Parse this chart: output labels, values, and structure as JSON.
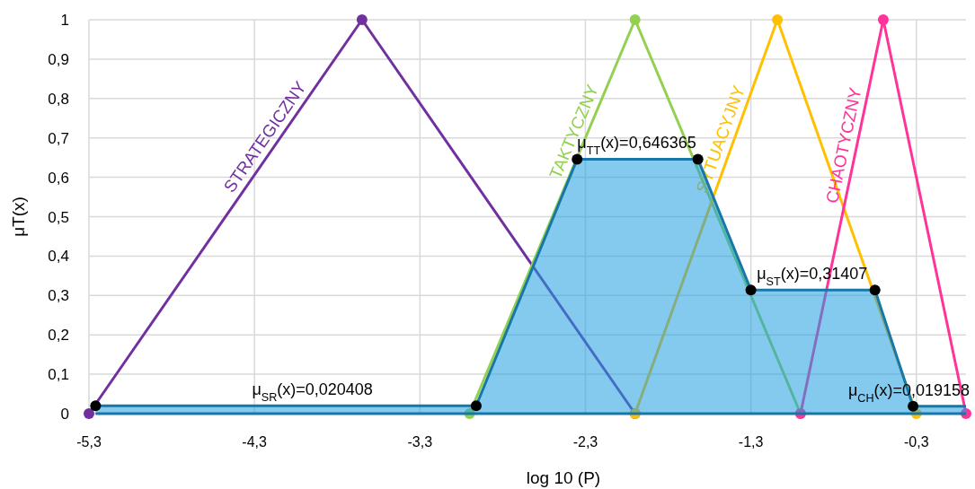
{
  "chart_data": {
    "type": "line",
    "xlabel": "log 10 (P)",
    "ylabel": "μT(x)",
    "xlim": [
      -5.3,
      0
    ],
    "ylim": [
      0,
      1
    ],
    "xticks": [
      {
        "value": -5.3,
        "label": "-5,3"
      },
      {
        "value": -4.3,
        "label": "-4,3"
      },
      {
        "value": -3.3,
        "label": "-3,3"
      },
      {
        "value": -2.3,
        "label": "-2,3"
      },
      {
        "value": -1.3,
        "label": "-1,3"
      },
      {
        "value": -0.3,
        "label": "-0,3"
      }
    ],
    "yticks": [
      0,
      {
        "value": 0.1,
        "label": "0,1"
      },
      {
        "value": 0.2,
        "label": "0,2"
      },
      {
        "value": 0.3,
        "label": "0,3"
      },
      {
        "value": 0.4,
        "label": "0,4"
      },
      {
        "value": 0.5,
        "label": "0,5"
      },
      {
        "value": 0.6,
        "label": "0,6"
      },
      {
        "value": 0.7,
        "label": "0,7"
      },
      {
        "value": 0.8,
        "label": "0,8"
      },
      {
        "value": 0.9,
        "label": "0,9"
      },
      1
    ],
    "grid": true,
    "legend": false,
    "marker": "circle",
    "line_style": "solid",
    "series": [
      {
        "type": "area",
        "color": "#1f9ee0",
        "marker": "none",
        "x": [
          -5.26,
          -2.96,
          -2.35,
          -1.62,
          -1.3,
          -0.55,
          -0.32,
          0
        ],
        "values": [
          0.02,
          0.02,
          0.646,
          0.646,
          0.314,
          0.314,
          0.019,
          0.019
        ]
      },
      {
        "name": "STRATEGICZNY",
        "color": "#7030a0",
        "x": [
          -5.3,
          -3.65,
          -2.0
        ],
        "values": [
          0,
          1,
          0
        ]
      },
      {
        "name": "TAKTYCZNY",
        "color": "#92d050",
        "x": [
          -3.0,
          -2.0,
          -1.0
        ],
        "values": [
          0,
          1,
          0
        ]
      },
      {
        "name": "SYTUACYJNY",
        "color": "#ffc000",
        "x": [
          -2.0,
          -1.14,
          -0.3
        ],
        "values": [
          0,
          1,
          0
        ]
      },
      {
        "name": "CHAOTYCZNY",
        "color": "#ff3399",
        "x": [
          -1.0,
          -0.5,
          0
        ],
        "values": [
          0,
          1,
          0
        ]
      },
      {
        "type": "scatter",
        "color": "#000000",
        "x": [
          -5.26,
          -2.96,
          -2.35,
          -1.62,
          -1.3,
          -0.55,
          -0.32
        ],
        "values": [
          0.02,
          0.02,
          0.646,
          0.646,
          0.314,
          0.314,
          0.019
        ]
      }
    ],
    "annotations": [
      {
        "text": "μ$_{SR}$(x)=0,020408",
        "x": -3.95,
        "y": 0.02
      },
      {
        "text": "μ$_{TT}$(x)=0,646365",
        "x": -1.99,
        "y": 0.646
      },
      {
        "text": "μ$_{ST}$(x)=0,31407",
        "x": -0.93,
        "y": 0.314
      },
      {
        "text": "μ$_{CH}$(x)=0,019158",
        "x": -0.32,
        "y": 0.019
      }
    ]
  }
}
